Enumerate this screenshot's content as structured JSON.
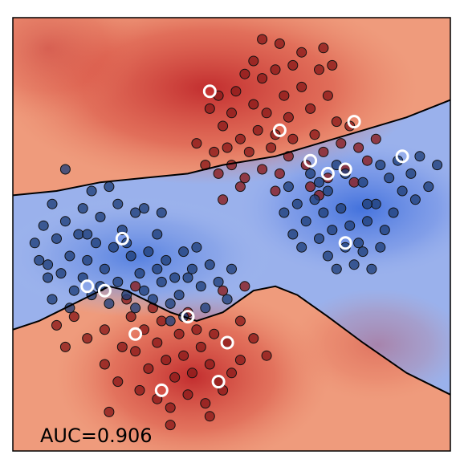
{
  "chart_data": {
    "type": "scatter",
    "title": "",
    "xlabel": "",
    "ylabel": "",
    "xlim": [
      0,
      1
    ],
    "ylim": [
      0,
      1
    ],
    "grid": false,
    "annotation": "AUC=0.906",
    "colors": {
      "class_red": "#8b1a1a",
      "class_blue": "#1f3f7a",
      "background_red": "#c0282b",
      "background_blue": "#3f6fdc",
      "highlight_ring": "#ffffff",
      "boundary": "#000000"
    },
    "series": [
      {
        "class": "red",
        "points": [
          [
            0.55,
            0.9
          ],
          [
            0.53,
            0.87
          ],
          [
            0.51,
            0.83
          ],
          [
            0.57,
            0.86
          ],
          [
            0.6,
            0.88
          ],
          [
            0.62,
            0.82
          ],
          [
            0.55,
            0.8
          ],
          [
            0.5,
            0.78
          ],
          [
            0.58,
            0.78
          ],
          [
            0.63,
            0.77
          ],
          [
            0.66,
            0.84
          ],
          [
            0.68,
            0.79
          ],
          [
            0.7,
            0.88
          ],
          [
            0.72,
            0.82
          ],
          [
            0.74,
            0.76
          ],
          [
            0.69,
            0.73
          ],
          [
            0.64,
            0.72
          ],
          [
            0.6,
            0.73
          ],
          [
            0.56,
            0.74
          ],
          [
            0.52,
            0.72
          ],
          [
            0.48,
            0.75
          ],
          [
            0.47,
            0.82
          ],
          [
            0.45,
            0.79
          ],
          [
            0.49,
            0.7
          ],
          [
            0.54,
            0.69
          ],
          [
            0.59,
            0.7
          ],
          [
            0.63,
            0.68
          ],
          [
            0.67,
            0.66
          ],
          [
            0.71,
            0.69
          ],
          [
            0.75,
            0.71
          ],
          [
            0.77,
            0.75
          ],
          [
            0.79,
            0.7
          ],
          [
            0.76,
            0.65
          ],
          [
            0.72,
            0.63
          ],
          [
            0.68,
            0.61
          ],
          [
            0.61,
            0.64
          ],
          [
            0.57,
            0.65
          ],
          [
            0.53,
            0.63
          ],
          [
            0.5,
            0.66
          ],
          [
            0.46,
            0.69
          ],
          [
            0.66,
            0.92
          ],
          [
            0.61,
            0.94
          ],
          [
            0.57,
            0.95
          ],
          [
            0.71,
            0.93
          ],
          [
            0.73,
            0.89
          ],
          [
            0.64,
            0.89
          ],
          [
            0.81,
            0.67
          ],
          [
            0.83,
            0.72
          ],
          [
            0.78,
            0.62
          ],
          [
            0.52,
            0.61
          ],
          [
            0.6,
            0.6
          ],
          [
            0.7,
            0.59
          ],
          [
            0.48,
            0.58
          ],
          [
            0.47,
            0.64
          ],
          [
            0.42,
            0.71
          ],
          [
            0.44,
            0.66
          ],
          [
            0.28,
            0.23
          ],
          [
            0.31,
            0.19
          ],
          [
            0.33,
            0.25
          ],
          [
            0.35,
            0.21
          ],
          [
            0.37,
            0.17
          ],
          [
            0.39,
            0.22
          ],
          [
            0.41,
            0.18
          ],
          [
            0.43,
            0.24
          ],
          [
            0.45,
            0.2
          ],
          [
            0.47,
            0.16
          ],
          [
            0.3,
            0.28
          ],
          [
            0.27,
            0.31
          ],
          [
            0.25,
            0.24
          ],
          [
            0.29,
            0.14
          ],
          [
            0.33,
            0.12
          ],
          [
            0.36,
            0.1
          ],
          [
            0.4,
            0.13
          ],
          [
            0.44,
            0.11
          ],
          [
            0.48,
            0.14
          ],
          [
            0.5,
            0.18
          ],
          [
            0.38,
            0.27
          ],
          [
            0.42,
            0.28
          ],
          [
            0.46,
            0.27
          ],
          [
            0.49,
            0.25
          ],
          [
            0.52,
            0.21
          ],
          [
            0.26,
            0.35
          ],
          [
            0.21,
            0.28
          ],
          [
            0.17,
            0.26
          ],
          [
            0.14,
            0.31
          ],
          [
            0.12,
            0.24
          ],
          [
            0.1,
            0.29
          ],
          [
            0.21,
            0.2
          ],
          [
            0.24,
            0.16
          ],
          [
            0.34,
            0.3
          ],
          [
            0.4,
            0.32
          ],
          [
            0.52,
            0.3
          ],
          [
            0.48,
            0.37
          ],
          [
            0.55,
            0.26
          ],
          [
            0.58,
            0.22
          ],
          [
            0.22,
            0.09
          ],
          [
            0.36,
            0.06
          ],
          [
            0.45,
            0.08
          ],
          [
            0.32,
            0.33
          ],
          [
            0.28,
            0.38
          ],
          [
            0.53,
            0.38
          ]
        ]
      },
      {
        "class": "blue",
        "points": [
          [
            0.1,
            0.49
          ],
          [
            0.13,
            0.45
          ],
          [
            0.15,
            0.5
          ],
          [
            0.17,
            0.44
          ],
          [
            0.19,
            0.48
          ],
          [
            0.21,
            0.42
          ],
          [
            0.23,
            0.47
          ],
          [
            0.25,
            0.51
          ],
          [
            0.27,
            0.45
          ],
          [
            0.29,
            0.41
          ],
          [
            0.31,
            0.46
          ],
          [
            0.33,
            0.5
          ],
          [
            0.35,
            0.44
          ],
          [
            0.37,
            0.4
          ],
          [
            0.39,
            0.46
          ],
          [
            0.41,
            0.42
          ],
          [
            0.43,
            0.38
          ],
          [
            0.45,
            0.43
          ],
          [
            0.47,
            0.39
          ],
          [
            0.49,
            0.35
          ],
          [
            0.11,
            0.41
          ],
          [
            0.14,
            0.37
          ],
          [
            0.16,
            0.4
          ],
          [
            0.18,
            0.36
          ],
          [
            0.2,
            0.38
          ],
          [
            0.22,
            0.34
          ],
          [
            0.24,
            0.39
          ],
          [
            0.26,
            0.36
          ],
          [
            0.28,
            0.33
          ],
          [
            0.3,
            0.37
          ],
          [
            0.32,
            0.35
          ],
          [
            0.34,
            0.39
          ],
          [
            0.36,
            0.34
          ],
          [
            0.38,
            0.36
          ],
          [
            0.4,
            0.4
          ],
          [
            0.12,
            0.53
          ],
          [
            0.16,
            0.56
          ],
          [
            0.2,
            0.54
          ],
          [
            0.24,
            0.57
          ],
          [
            0.28,
            0.55
          ],
          [
            0.06,
            0.44
          ],
          [
            0.08,
            0.4
          ],
          [
            0.09,
            0.35
          ],
          [
            0.05,
            0.48
          ],
          [
            0.07,
            0.52
          ],
          [
            0.18,
            0.6
          ],
          [
            0.22,
            0.61
          ],
          [
            0.3,
            0.56
          ],
          [
            0.34,
            0.55
          ],
          [
            0.36,
            0.3
          ],
          [
            0.44,
            0.33
          ],
          [
            0.39,
            0.31
          ],
          [
            0.13,
            0.33
          ],
          [
            0.63,
            0.61
          ],
          [
            0.65,
            0.57
          ],
          [
            0.67,
            0.53
          ],
          [
            0.69,
            0.58
          ],
          [
            0.71,
            0.55
          ],
          [
            0.73,
            0.51
          ],
          [
            0.75,
            0.56
          ],
          [
            0.77,
            0.52
          ],
          [
            0.79,
            0.48
          ],
          [
            0.81,
            0.53
          ],
          [
            0.83,
            0.57
          ],
          [
            0.85,
            0.51
          ],
          [
            0.87,
            0.55
          ],
          [
            0.89,
            0.6
          ],
          [
            0.91,
            0.64
          ],
          [
            0.66,
            0.47
          ],
          [
            0.7,
            0.49
          ],
          [
            0.72,
            0.45
          ],
          [
            0.74,
            0.42
          ],
          [
            0.76,
            0.47
          ],
          [
            0.78,
            0.43
          ],
          [
            0.8,
            0.46
          ],
          [
            0.82,
            0.42
          ],
          [
            0.84,
            0.47
          ],
          [
            0.86,
            0.63
          ],
          [
            0.88,
            0.67
          ],
          [
            0.84,
            0.66
          ],
          [
            0.8,
            0.62
          ],
          [
            0.76,
            0.64
          ],
          [
            0.72,
            0.6
          ],
          [
            0.92,
            0.58
          ],
          [
            0.93,
            0.68
          ],
          [
            0.95,
            0.61
          ],
          [
            0.97,
            0.66
          ],
          [
            0.68,
            0.64
          ],
          [
            0.74,
            0.66
          ],
          [
            0.62,
            0.55
          ],
          [
            0.7,
            0.62
          ],
          [
            0.81,
            0.57
          ],
          [
            0.64,
            0.5
          ],
          [
            0.12,
            0.65
          ],
          [
            0.08,
            0.43
          ],
          [
            0.17,
            0.5
          ],
          [
            0.26,
            0.48
          ],
          [
            0.42,
            0.47
          ],
          [
            0.09,
            0.57
          ],
          [
            0.33,
            0.42
          ],
          [
            0.5,
            0.42
          ]
        ]
      }
    ],
    "highlighted_points": [
      [
        0.45,
        0.83
      ],
      [
        0.61,
        0.74
      ],
      [
        0.78,
        0.76
      ],
      [
        0.68,
        0.67
      ],
      [
        0.72,
        0.64
      ],
      [
        0.76,
        0.65
      ],
      [
        0.89,
        0.68
      ],
      [
        0.76,
        0.48
      ],
      [
        0.25,
        0.49
      ],
      [
        0.17,
        0.38
      ],
      [
        0.21,
        0.37
      ],
      [
        0.4,
        0.31
      ],
      [
        0.28,
        0.27
      ],
      [
        0.49,
        0.25
      ],
      [
        0.47,
        0.16
      ],
      [
        0.34,
        0.14
      ]
    ],
    "decision_boundary": {
      "upper": [
        [
          0.0,
          0.59
        ],
        [
          0.1,
          0.6
        ],
        [
          0.2,
          0.62
        ],
        [
          0.3,
          0.63
        ],
        [
          0.4,
          0.64
        ],
        [
          0.48,
          0.66
        ],
        [
          0.6,
          0.68
        ],
        [
          0.7,
          0.71
        ],
        [
          0.8,
          0.74
        ],
        [
          0.9,
          0.77
        ],
        [
          1.0,
          0.81
        ]
      ],
      "lower": [
        [
          0.0,
          0.28
        ],
        [
          0.06,
          0.3
        ],
        [
          0.12,
          0.33
        ],
        [
          0.18,
          0.36
        ],
        [
          0.22,
          0.38
        ],
        [
          0.26,
          0.37
        ],
        [
          0.3,
          0.35
        ],
        [
          0.36,
          0.32
        ],
        [
          0.42,
          0.3
        ],
        [
          0.48,
          0.32
        ],
        [
          0.55,
          0.37
        ],
        [
          0.6,
          0.38
        ],
        [
          0.65,
          0.36
        ],
        [
          0.72,
          0.31
        ],
        [
          0.8,
          0.25
        ],
        [
          0.9,
          0.18
        ],
        [
          1.0,
          0.13
        ]
      ]
    }
  }
}
